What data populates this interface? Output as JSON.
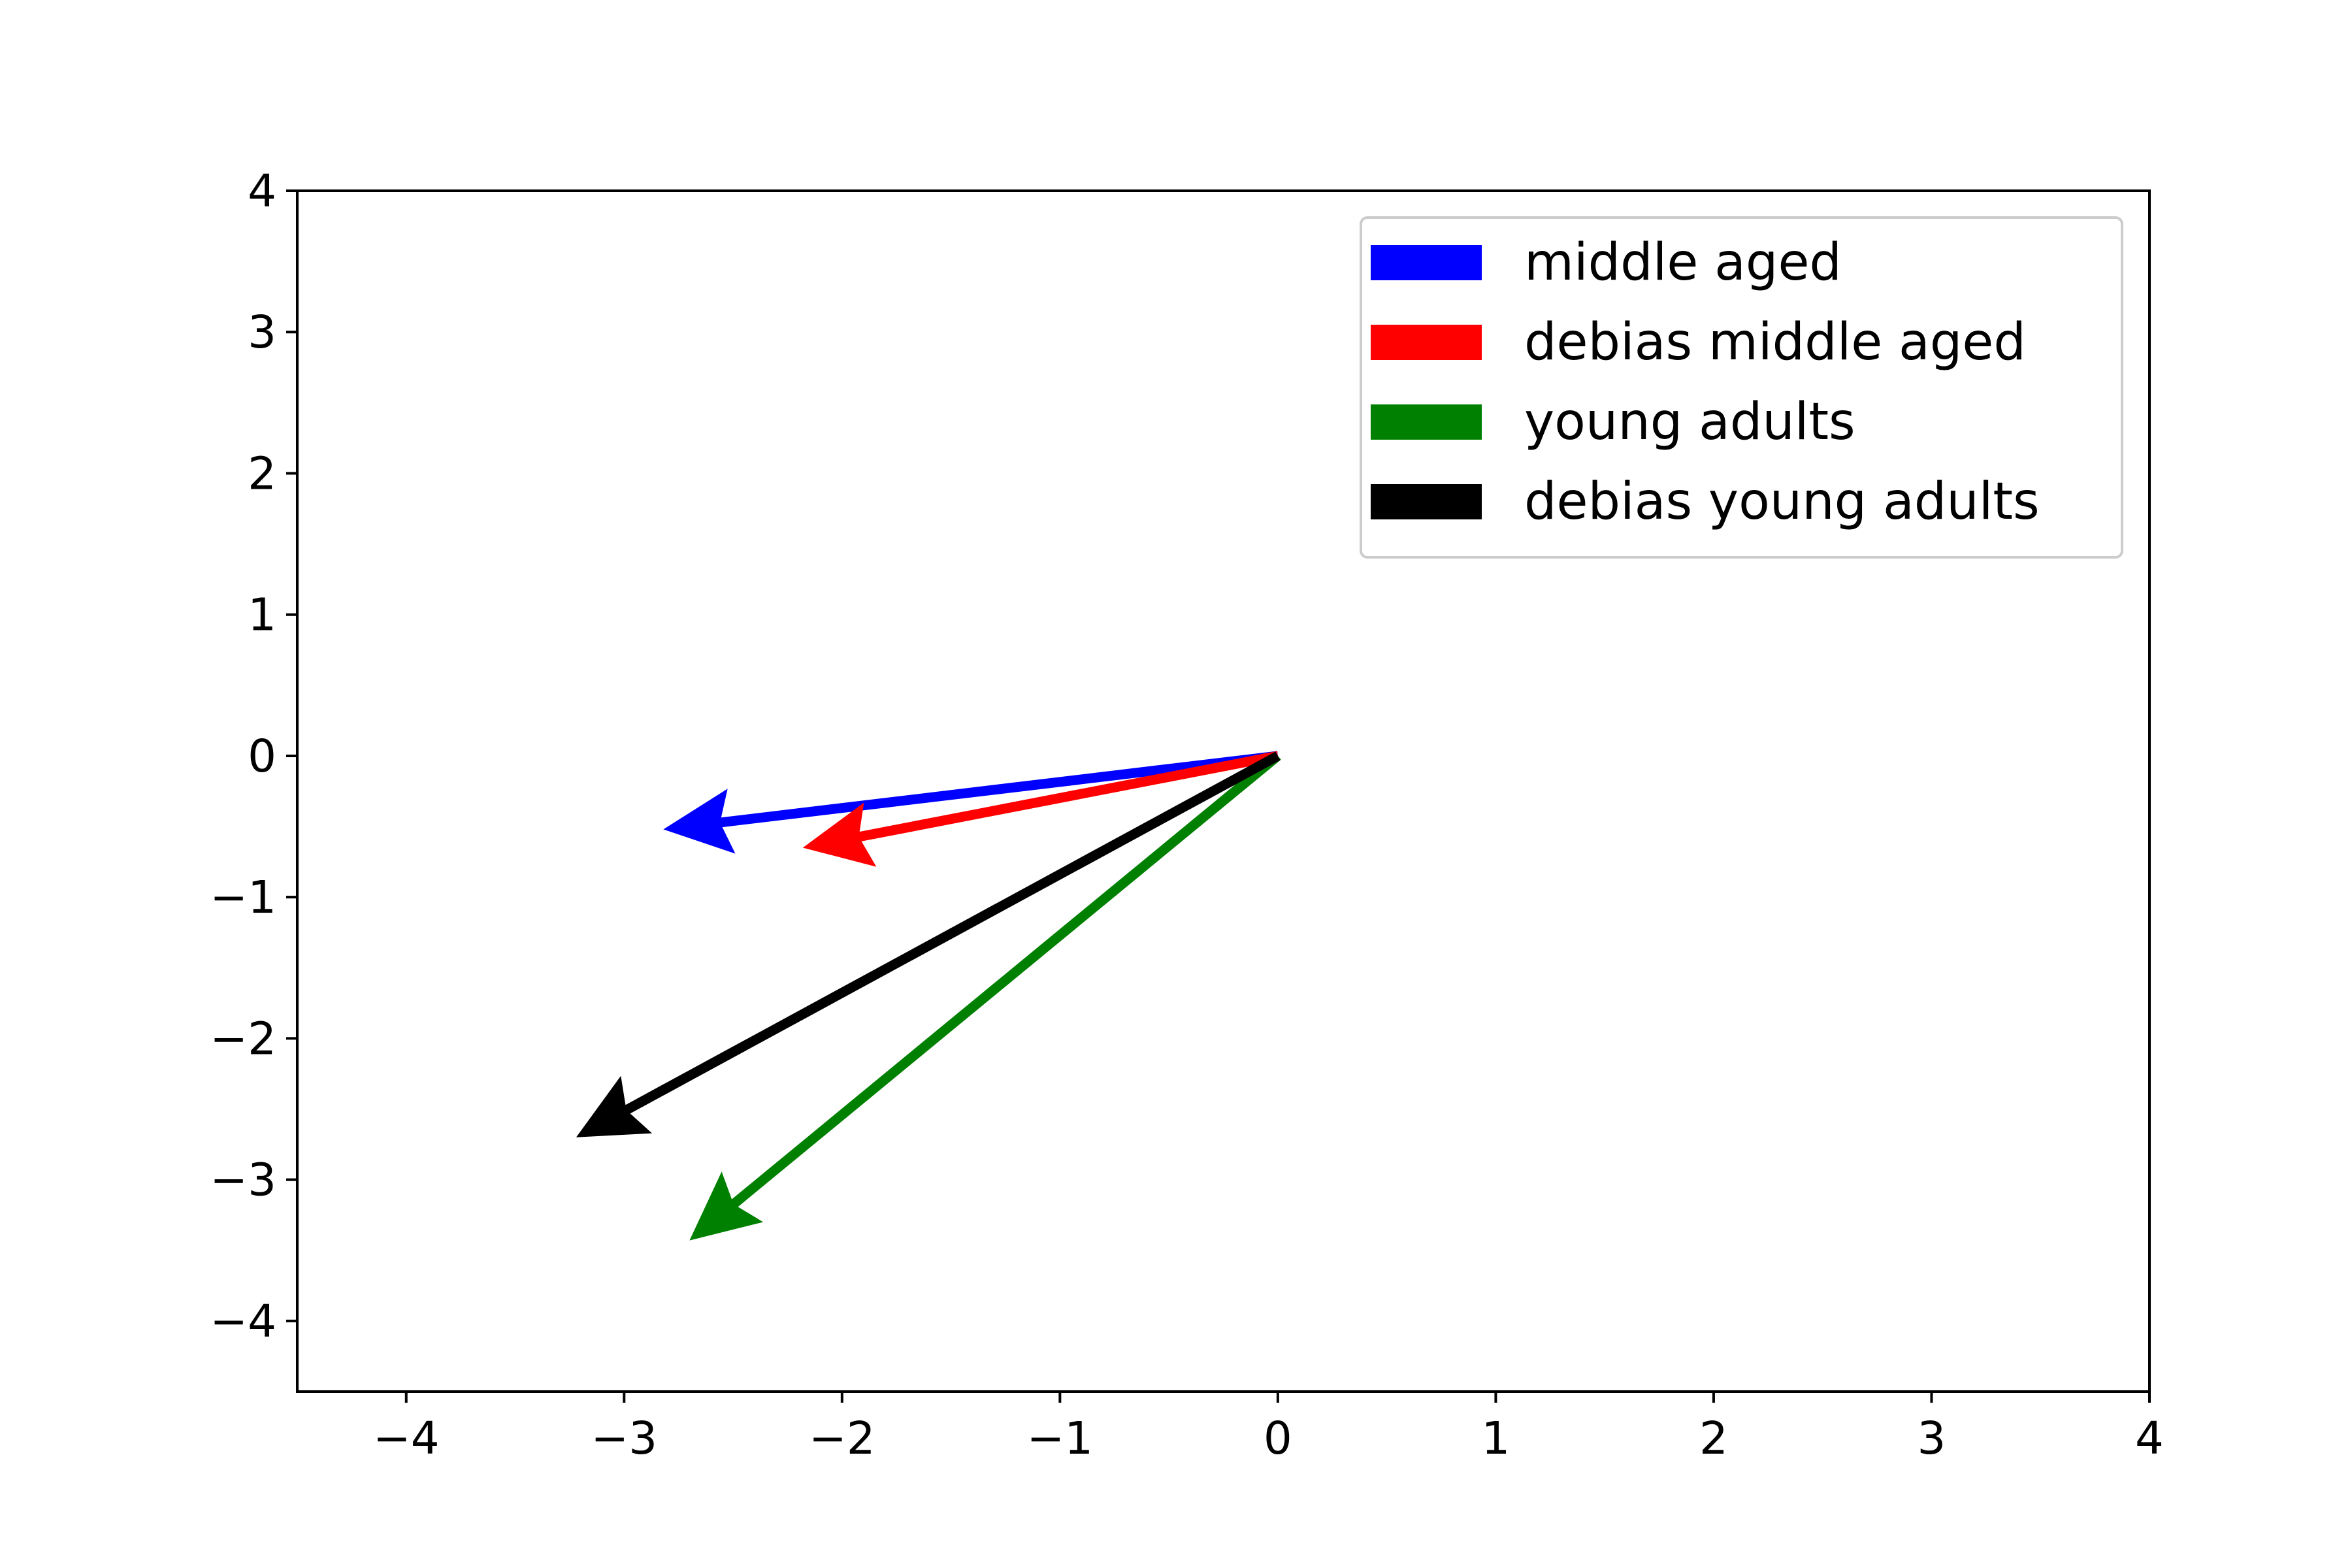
{
  "chart_data": {
    "type": "quiver",
    "title": "",
    "xlabel": "",
    "ylabel": "",
    "xlim": [
      -4.5,
      4
    ],
    "ylim": [
      -4.5,
      4
    ],
    "xticks": [
      -4,
      -3,
      -2,
      -1,
      0,
      1,
      2,
      3,
      4
    ],
    "yticks": [
      -4,
      -3,
      -2,
      -1,
      0,
      1,
      2,
      3,
      4
    ],
    "xtick_labels": [
      "−4",
      "−3",
      "−2",
      "−1",
      "0",
      "1",
      "2",
      "3",
      "4"
    ],
    "ytick_labels": [
      "−4",
      "−3",
      "−2",
      "−1",
      "0",
      "1",
      "2",
      "3",
      "4"
    ],
    "grid": false,
    "legend_position": "top-right",
    "series": [
      {
        "name": "middle aged",
        "color": "#0000ff",
        "x0": 0,
        "y0": 0,
        "x": -2.82,
        "y": -0.52
      },
      {
        "name": "debias middle aged",
        "color": "#ff0000",
        "x0": 0,
        "y0": 0,
        "x": -2.18,
        "y": -0.65
      },
      {
        "name": "young adults",
        "color": "#008000",
        "x0": 0,
        "y0": 0,
        "x": -2.7,
        "y": -3.43
      },
      {
        "name": "debias young adults",
        "color": "#000000",
        "x0": 0,
        "y0": 0,
        "x": -3.22,
        "y": -2.7
      }
    ]
  }
}
